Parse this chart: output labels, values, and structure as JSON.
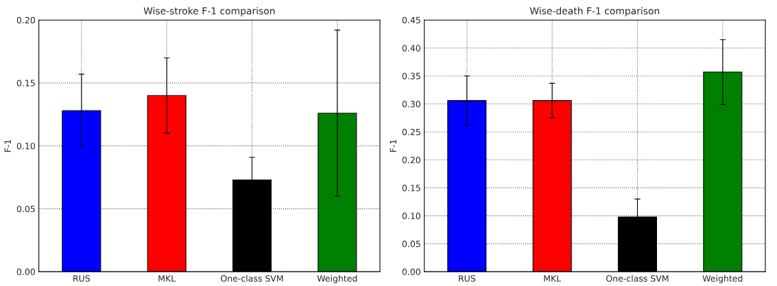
{
  "chart_data": [
    {
      "type": "bar",
      "title": "Wise-stroke F-1 comparison",
      "ylabel": "F-1",
      "categories": [
        "RUS",
        "MKL",
        "One-class SVM",
        "Weighted"
      ],
      "values": [
        0.128,
        0.14,
        0.073,
        0.126
      ],
      "errors": [
        0.029,
        0.03,
        0.018,
        0.066
      ],
      "colors": [
        "#0000ff",
        "#ff0000",
        "#000000",
        "#008000"
      ],
      "ylim": [
        0,
        0.2
      ],
      "yticks": [
        {
          "value": 0,
          "label": "0.00"
        },
        {
          "value": 0.05,
          "label": "0.05"
        },
        {
          "value": 0.1,
          "label": "0.10"
        },
        {
          "value": 0.15,
          "label": "0.15"
        },
        {
          "value": 0.2,
          "label": "0.20"
        }
      ],
      "grid": true
    },
    {
      "type": "bar",
      "title": "Wise-death F-1 comparison",
      "ylabel": "F-1",
      "categories": [
        "RUS",
        "MKL",
        "One-class SVM",
        "Weighted"
      ],
      "values": [
        0.306,
        0.306,
        0.098,
        0.357
      ],
      "errors": [
        0.044,
        0.031,
        0.032,
        0.058
      ],
      "colors": [
        "#0000ff",
        "#ff0000",
        "#000000",
        "#008000"
      ],
      "ylim": [
        0,
        0.45
      ],
      "yticks": [
        {
          "value": 0,
          "label": "0.00"
        },
        {
          "value": 0.05,
          "label": "0.05"
        },
        {
          "value": 0.1,
          "label": "0.10"
        },
        {
          "value": 0.15,
          "label": "0.15"
        },
        {
          "value": 0.2,
          "label": "0.20"
        },
        {
          "value": 0.25,
          "label": "0.25"
        },
        {
          "value": 0.3,
          "label": "0.30"
        },
        {
          "value": 0.35,
          "label": "0.35"
        },
        {
          "value": 0.4,
          "label": "0.40"
        },
        {
          "value": 0.45,
          "label": "0.45"
        }
      ],
      "grid": true
    }
  ]
}
